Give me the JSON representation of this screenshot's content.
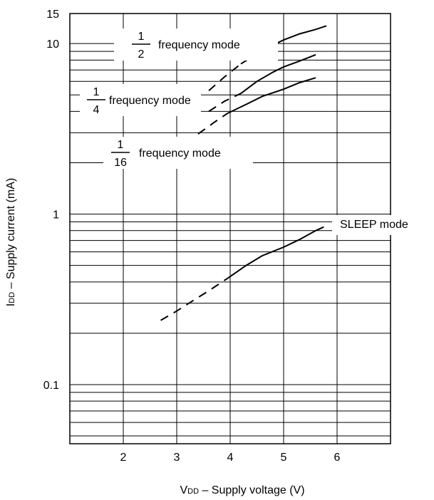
{
  "chart_data": {
    "type": "line",
    "x_scale": "linear",
    "y_scale": "log",
    "xlim": [
      1,
      7
    ],
    "ylim": [
      0.045,
      15
    ],
    "x_ticks": [
      {
        "value": 2,
        "label": "2"
      },
      {
        "value": 3,
        "label": "3"
      },
      {
        "value": 4,
        "label": "4"
      },
      {
        "value": 5,
        "label": "5"
      },
      {
        "value": 6,
        "label": "6"
      }
    ],
    "y_ticks": [
      {
        "value": 0.1,
        "label": "0.1"
      },
      {
        "value": 1,
        "label": "1"
      },
      {
        "value": 10,
        "label": "10"
      },
      {
        "value": 15,
        "label": "15"
      }
    ],
    "xlabel": {
      "main": "V",
      "sub": "DD",
      "rest": " – Supply voltage (V)"
    },
    "ylabel": {
      "main": "I",
      "sub": "DD",
      "rest": " – Supply current (mA)"
    },
    "grid": true,
    "series": [
      {
        "id": "half",
        "label": {
          "numerator": "1",
          "denominator": "2",
          "text": "frequency mode"
        },
        "dashed_to_x": 4.2,
        "points": [
          [
            3.6,
            5.3
          ],
          [
            3.9,
            6.4
          ],
          [
            4.2,
            7.6
          ],
          [
            4.5,
            8.7
          ],
          [
            4.8,
            9.8
          ],
          [
            5.0,
            10.5
          ],
          [
            5.3,
            11.4
          ],
          [
            5.6,
            12.1
          ],
          [
            5.8,
            12.7
          ]
        ]
      },
      {
        "id": "quarter",
        "label": {
          "numerator": "1",
          "denominator": "4",
          "text": "frequency mode"
        },
        "dashed_to_x": 4.2,
        "points": [
          [
            3.6,
            4.0
          ],
          [
            3.9,
            4.6
          ],
          [
            4.2,
            5.1
          ],
          [
            4.5,
            6.0
          ],
          [
            4.8,
            6.8
          ],
          [
            5.0,
            7.3
          ],
          [
            5.3,
            7.9
          ],
          [
            5.6,
            8.6
          ]
        ]
      },
      {
        "id": "sixteenth",
        "label": {
          "numerator": "1",
          "denominator": "16",
          "text": "frequency mode"
        },
        "dashed_to_x": 3.95,
        "points": [
          [
            3.4,
            2.95
          ],
          [
            3.7,
            3.45
          ],
          [
            3.95,
            3.9
          ],
          [
            4.3,
            4.4
          ],
          [
            4.6,
            4.9
          ],
          [
            5.0,
            5.4
          ],
          [
            5.3,
            5.9
          ],
          [
            5.6,
            6.3
          ]
        ]
      },
      {
        "id": "sleep",
        "label": {
          "text": "SLEEP mode"
        },
        "dashed_to_x": 3.95,
        "points": [
          [
            2.7,
            0.238
          ],
          [
            3.0,
            0.27
          ],
          [
            3.3,
            0.31
          ],
          [
            3.6,
            0.355
          ],
          [
            3.95,
            0.42
          ],
          [
            4.3,
            0.5
          ],
          [
            4.6,
            0.57
          ],
          [
            5.0,
            0.64
          ],
          [
            5.3,
            0.71
          ],
          [
            5.6,
            0.8
          ],
          [
            5.75,
            0.84
          ]
        ]
      }
    ]
  }
}
